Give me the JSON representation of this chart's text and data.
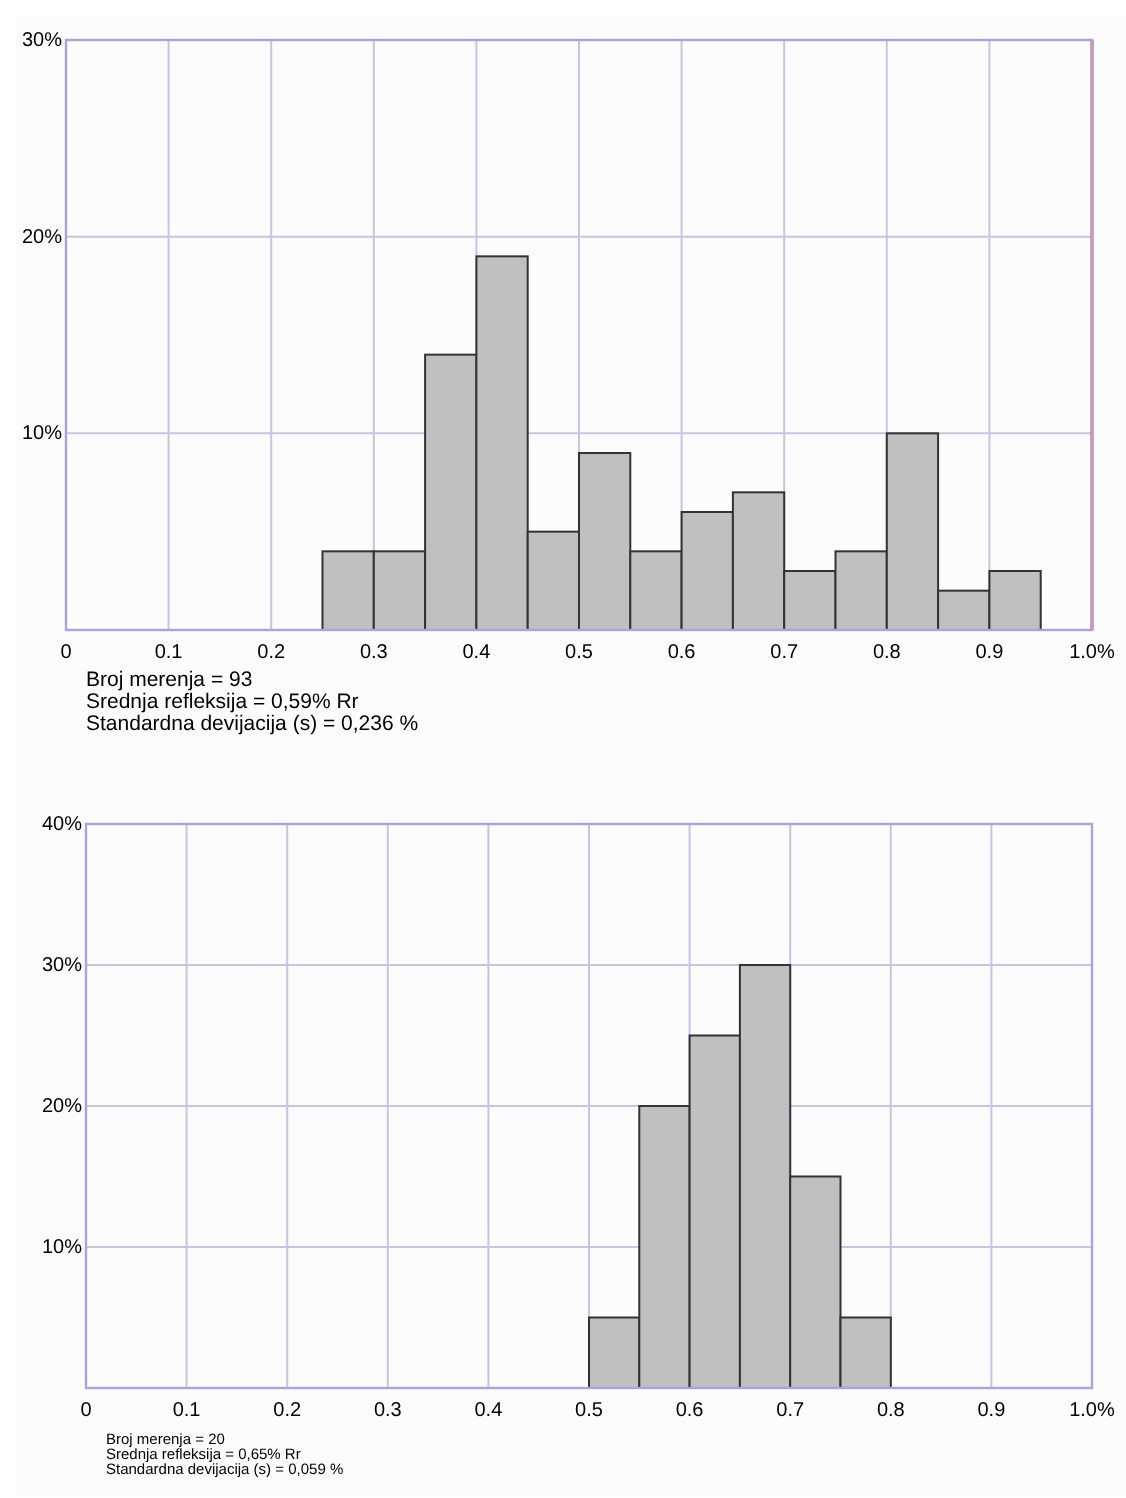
{
  "chart_data": [
    {
      "type": "histogram",
      "bins": [
        0.25,
        0.3,
        0.35,
        0.4,
        0.45,
        0.5,
        0.55,
        0.6,
        0.65,
        0.7,
        0.75,
        0.8,
        0.85,
        0.9,
        0.95
      ],
      "values": [
        4,
        4,
        14,
        19,
        5,
        9,
        4,
        6,
        7,
        3,
        4,
        10,
        2,
        3
      ],
      "color": "#c0c0c0",
      "xlim": [
        0,
        1
      ],
      "xticks": [
        0,
        0.1,
        0.2,
        0.3,
        0.4,
        0.5,
        0.6,
        0.7,
        0.8,
        0.9,
        {
          "value": 1,
          "label": "1.0%"
        }
      ],
      "ylim": [
        0,
        30
      ],
      "yticks": [
        {
          "value": 10,
          "label": "10%"
        },
        {
          "value": 20,
          "label": "20%"
        },
        {
          "value": 30,
          "label": "30%"
        }
      ],
      "grid": true,
      "ref_lines": [
        {
          "axis": "x",
          "value": 1,
          "label": null,
          "color": "#e8383d"
        }
      ],
      "annotations": [
        "Broj merenja = 93",
        "Srednja refleksija = 0,59% Rr",
        "Standardna devijacija (s) = 0,236 %"
      ]
    },
    {
      "type": "histogram",
      "bins": [
        0.5,
        0.55,
        0.6,
        0.65,
        0.7,
        0.75,
        0.8
      ],
      "values": [
        5,
        20,
        25,
        30,
        15,
        5
      ],
      "color": "#c0c0c0",
      "xlim": [
        0,
        1
      ],
      "xticks": [
        0,
        0.1,
        0.2,
        0.3,
        0.4,
        0.5,
        0.6,
        0.7,
        0.8,
        0.9,
        {
          "value": 1,
          "label": "1.0%"
        }
      ],
      "ylim": [
        0,
        40
      ],
      "yticks": [
        {
          "value": 10,
          "label": "10%"
        },
        {
          "value": 20,
          "label": "20%"
        },
        {
          "value": 30,
          "label": "30%"
        },
        {
          "value": 40,
          "label": "40%"
        }
      ],
      "grid": true,
      "annotations": [
        "Broj merenja = 20",
        "Srednja refleksija = 0,65% Rr",
        "Standardna devijacija (s) = 0,059 %"
      ]
    }
  ]
}
